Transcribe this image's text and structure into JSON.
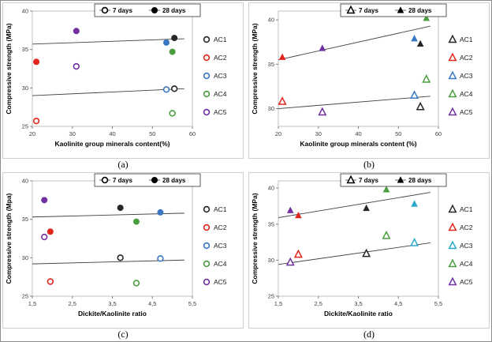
{
  "figure": {
    "captions": {
      "a": "(a)",
      "b": "(b)",
      "c": "(c)",
      "d": "(d)"
    }
  },
  "chart_data": [
    {
      "id": "a",
      "type": "scatter",
      "marker": "circle",
      "xlabel": "Kaolinite group minerals content(%)",
      "ylabel": "Compressive strength (MPa)",
      "xlim": [
        20,
        60
      ],
      "ylim": [
        25,
        40
      ],
      "xticks": {
        "values": [
          20,
          30,
          40,
          50,
          60
        ],
        "labels": [
          "20",
          "30",
          "40",
          "50",
          "60"
        ]
      },
      "yticks": {
        "values": [
          25,
          30,
          35,
          40
        ],
        "labels": [
          "25",
          "30",
          "35",
          "40"
        ]
      },
      "legend_days": [
        "7 days",
        "28 days"
      ],
      "series": [
        {
          "name": "AC1",
          "color": "#262626",
          "x": 55.5,
          "y7": 29.9,
          "y28": 36.5
        },
        {
          "name": "AC2",
          "color": "#e0261c",
          "x": 21.0,
          "y7": 25.7,
          "y28": 33.4
        },
        {
          "name": "AC3",
          "color": "#3a77c2",
          "x": 53.5,
          "y7": 29.8,
          "y28": 35.9
        },
        {
          "name": "AC4",
          "color": "#4a9d3f",
          "x": 55.0,
          "y7": 26.7,
          "y28": 34.7
        },
        {
          "name": "AC5",
          "color": "#7030a0",
          "x": 31.0,
          "y7": 32.8,
          "y28": 37.4
        }
      ],
      "trendlines": [
        {
          "x1": 20,
          "y1": 35.7,
          "x2": 58,
          "y2": 36.4
        },
        {
          "x1": 20,
          "y1": 29.0,
          "x2": 58,
          "y2": 29.9
        }
      ]
    },
    {
      "id": "b",
      "type": "scatter",
      "marker": "triangle",
      "xlabel": "Kaolinite group minerals content (%)",
      "ylabel": "Compressive strength (MPa)",
      "xlim": [
        20,
        60
      ],
      "ylim": [
        28,
        41
      ],
      "xticks": {
        "values": [
          20,
          30,
          40,
          50,
          60
        ],
        "labels": [
          "20",
          "30",
          "40",
          "50",
          "60"
        ]
      },
      "yticks": {
        "values": [
          30,
          35,
          40
        ],
        "labels": [
          "30",
          "35",
          "40"
        ]
      },
      "legend_days": [
        "7 days",
        "28 days"
      ],
      "series": [
        {
          "name": "AC1",
          "color": "#262626",
          "x": 55.5,
          "y7": 30.2,
          "y28": 37.3
        },
        {
          "name": "AC2",
          "color": "#e0261c",
          "x": 21.0,
          "y7": 30.8,
          "y28": 35.8
        },
        {
          "name": "AC3",
          "color": "#3a77c2",
          "x": 54.0,
          "y7": 31.5,
          "y28": 37.9
        },
        {
          "name": "AC4",
          "color": "#4a9d3f",
          "x": 57.0,
          "y7": 33.3,
          "y28": 40.2
        },
        {
          "name": "AC5",
          "color": "#7030a0",
          "x": 31.0,
          "y7": 29.6,
          "y28": 36.8
        }
      ],
      "trendlines": [
        {
          "x1": 20,
          "y1": 35.5,
          "x2": 58,
          "y2": 39.3
        },
        {
          "x1": 20,
          "y1": 30.0,
          "x2": 58,
          "y2": 31.4
        }
      ]
    },
    {
      "id": "c",
      "type": "scatter",
      "marker": "circle",
      "xlabel": "Dickite/Kaolinite ratio",
      "ylabel": "Compressive strength (Mpa)",
      "xlim": [
        1.5,
        5.5
      ],
      "ylim": [
        25,
        40
      ],
      "xticks": {
        "values": [
          1.5,
          2.5,
          3.5,
          4.5,
          5.5
        ],
        "labels": [
          "1,5",
          "2,5",
          "3,5",
          "4,5",
          "5,5"
        ]
      },
      "yticks": {
        "values": [
          25,
          30,
          35,
          40
        ],
        "labels": [
          "25",
          "30",
          "35",
          "40"
        ]
      },
      "legend_days": [
        "7 days",
        "28 days"
      ],
      "series": [
        {
          "name": "AC1",
          "color": "#262626",
          "x": 3.7,
          "y7": 30.0,
          "y28": 36.5
        },
        {
          "name": "AC2",
          "color": "#e0261c",
          "x": 1.95,
          "y7": 26.9,
          "y28": 33.4
        },
        {
          "name": "AC3",
          "color": "#3a77c2",
          "x": 4.7,
          "y7": 29.9,
          "y28": 35.9
        },
        {
          "name": "AC4",
          "color": "#4a9d3f",
          "x": 4.1,
          "y7": 26.7,
          "y28": 34.7
        },
        {
          "name": "AC5",
          "color": "#7030a0",
          "x": 1.8,
          "y7": 32.7,
          "y28": 37.5
        }
      ],
      "trendlines": [
        {
          "x1": 1.5,
          "y1": 35.3,
          "x2": 5.3,
          "y2": 35.8
        },
        {
          "x1": 1.5,
          "y1": 29.2,
          "x2": 5.3,
          "y2": 29.7
        }
      ]
    },
    {
      "id": "d",
      "type": "scatter",
      "marker": "triangle",
      "xlabel": "Dickite/Kaolinite ratio",
      "ylabel": "Compressive strength (MPa)",
      "xlim": [
        1.5,
        5.5
      ],
      "ylim": [
        25,
        41
      ],
      "xticks": {
        "values": [
          1.5,
          2.5,
          3.5,
          4.5,
          5.5
        ],
        "labels": [
          "1,5",
          "2,5",
          "3,5",
          "4,5",
          "5,5"
        ]
      },
      "yticks": {
        "values": [
          25,
          30,
          35,
          40
        ],
        "labels": [
          "25",
          "30",
          "35",
          "40"
        ]
      },
      "legend_days": [
        "7 days",
        "28 days"
      ],
      "series": [
        {
          "name": "AC1",
          "color": "#262626",
          "x": 3.7,
          "y7": 30.9,
          "y28": 37.2
        },
        {
          "name": "AC2",
          "color": "#e0261c",
          "x": 2.0,
          "y7": 30.8,
          "y28": 36.2
        },
        {
          "name": "AC3",
          "color": "#2aa7c9",
          "x": 4.9,
          "y7": 32.4,
          "y28": 37.8
        },
        {
          "name": "AC4",
          "color": "#4a9d3f",
          "x": 4.2,
          "y7": 33.4,
          "y28": 39.8
        },
        {
          "name": "AC5",
          "color": "#7030a0",
          "x": 1.8,
          "y7": 29.7,
          "y28": 36.9
        }
      ],
      "trendlines": [
        {
          "x1": 1.5,
          "y1": 35.9,
          "x2": 5.3,
          "y2": 39.4
        },
        {
          "x1": 1.5,
          "y1": 29.4,
          "x2": 5.3,
          "y2": 32.4
        }
      ]
    }
  ]
}
